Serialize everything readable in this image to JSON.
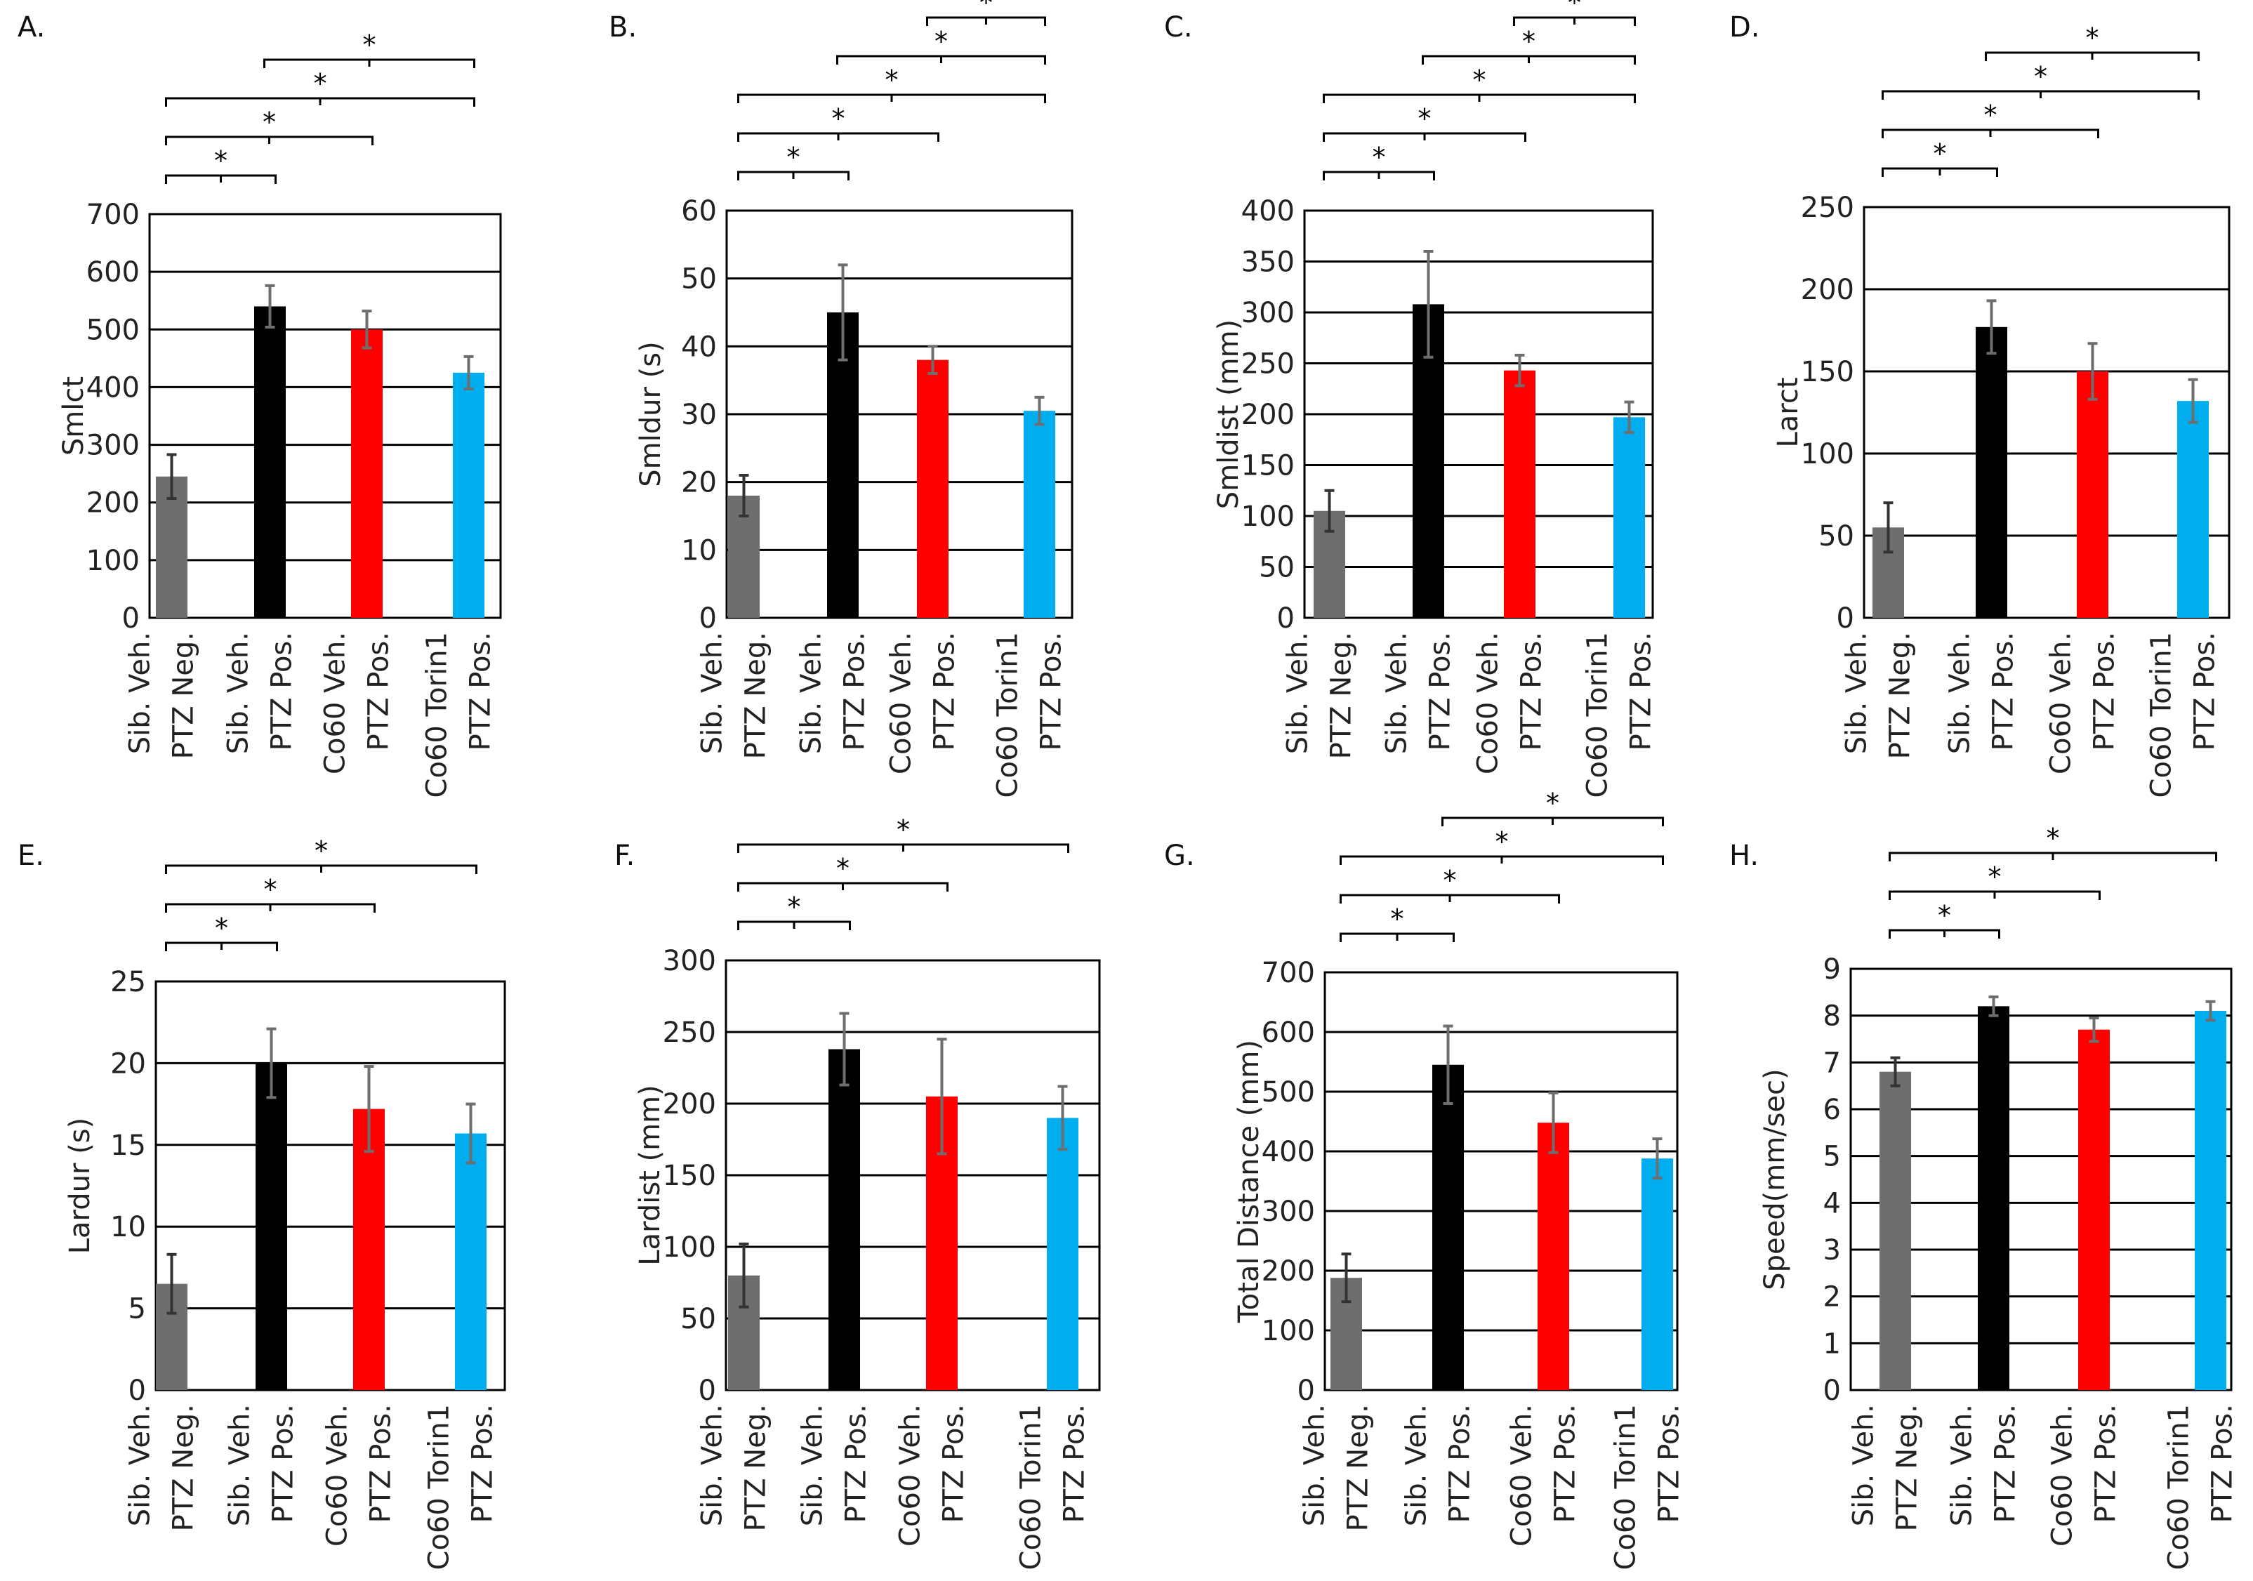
{
  "figure": {
    "description_title": ""
  },
  "colors": {
    "sib_neg": "#6e6e6e",
    "sib_pos": "#000000",
    "co60_veh": "#ff0000",
    "co60_torin": "#00adef"
  },
  "chart_data": [
    {
      "panel": "A.",
      "type": "bar",
      "ylabel": "Smlct",
      "ylim": [
        0,
        700
      ],
      "yticks": [
        0,
        100,
        200,
        300,
        400,
        500,
        600,
        700
      ],
      "categories": [
        [
          "Sib. Veh.",
          "PTZ Neg."
        ],
        [
          "Sib. Veh.",
          "PTZ Pos."
        ],
        [
          "Co60 Veh.",
          "PTZ Pos."
        ],
        [
          "Co60 Torin1",
          "PTZ Pos."
        ]
      ],
      "values": [
        245,
        540,
        500,
        425
      ],
      "errors": [
        38,
        36,
        32,
        28
      ],
      "significance": [
        {
          "from": 0,
          "to": 1,
          "label": "*"
        },
        {
          "from": 0,
          "to": 2,
          "label": "*"
        },
        {
          "from": 0,
          "to": 3,
          "label": "*"
        },
        {
          "from": 1,
          "to": 3,
          "label": "*"
        }
      ]
    },
    {
      "panel": "B.",
      "type": "bar",
      "ylabel": "Smldur (s)",
      "ylim": [
        0,
        60
      ],
      "yticks": [
        0,
        10,
        20,
        30,
        40,
        50,
        60
      ],
      "categories": [
        [
          "Sib. Veh.",
          "PTZ Neg."
        ],
        [
          "Sib. Veh.",
          "PTZ Pos."
        ],
        [
          "Co60 Veh.",
          "PTZ Pos."
        ],
        [
          "Co60 Torin1",
          "PTZ Pos."
        ]
      ],
      "values": [
        18,
        45,
        38,
        30.5
      ],
      "errors": [
        3,
        7,
        2,
        2
      ],
      "significance": [
        {
          "from": 0,
          "to": 1,
          "label": "*"
        },
        {
          "from": 0,
          "to": 2,
          "label": "*"
        },
        {
          "from": 0,
          "to": 3,
          "label": "*"
        },
        {
          "from": 1,
          "to": 3,
          "label": "*"
        },
        {
          "from": 2,
          "to": 3,
          "label": "*"
        }
      ]
    },
    {
      "panel": "C.",
      "type": "bar",
      "ylabel": "Smldist (mm)",
      "ylim": [
        0,
        400
      ],
      "yticks": [
        0,
        50,
        100,
        150,
        200,
        250,
        300,
        350,
        400
      ],
      "categories": [
        [
          "Sib. Veh.",
          "PTZ Neg."
        ],
        [
          "Sib. Veh.",
          "PTZ Pos."
        ],
        [
          "Co60 Veh.",
          "PTZ Pos."
        ],
        [
          "Co60 Torin1",
          "PTZ Pos."
        ]
      ],
      "values": [
        105,
        308,
        243,
        197
      ],
      "errors": [
        20,
        52,
        15,
        15
      ],
      "significance": [
        {
          "from": 0,
          "to": 1,
          "label": "*"
        },
        {
          "from": 0,
          "to": 2,
          "label": "*"
        },
        {
          "from": 0,
          "to": 3,
          "label": "*"
        },
        {
          "from": 1,
          "to": 3,
          "label": "*"
        },
        {
          "from": 2,
          "to": 3,
          "label": "*"
        }
      ]
    },
    {
      "panel": "D.",
      "type": "bar",
      "ylabel": "Larct",
      "ylim": [
        0,
        250
      ],
      "yticks": [
        0,
        50,
        100,
        150,
        200,
        250
      ],
      "categories": [
        [
          "Sib. Veh.",
          "PTZ Neg."
        ],
        [
          "Sib. Veh.",
          "PTZ Pos."
        ],
        [
          "Co60 Veh.",
          "PTZ Pos."
        ],
        [
          "Co60 Torin1",
          "PTZ Pos."
        ]
      ],
      "values": [
        55,
        177,
        150,
        132
      ],
      "errors": [
        15,
        16,
        17,
        13
      ],
      "significance": [
        {
          "from": 0,
          "to": 1,
          "label": "*"
        },
        {
          "from": 0,
          "to": 2,
          "label": "*"
        },
        {
          "from": 0,
          "to": 3,
          "label": "*"
        },
        {
          "from": 1,
          "to": 3,
          "label": "*"
        }
      ]
    },
    {
      "panel": "E.",
      "type": "bar",
      "ylabel": "Lardur (s)",
      "ylim": [
        0,
        25
      ],
      "yticks": [
        0,
        5,
        10,
        15,
        20,
        25
      ],
      "categories": [
        [
          "Sib. Veh.",
          "PTZ Neg."
        ],
        [
          "Sib. Veh.",
          "PTZ Pos."
        ],
        [
          "Co60 Veh.",
          "PTZ Pos."
        ],
        [
          "Co60 Torin1",
          "PTZ Pos."
        ]
      ],
      "values": [
        6.5,
        20,
        17.2,
        15.7
      ],
      "errors": [
        1.8,
        2.1,
        2.6,
        1.8
      ],
      "significance": [
        {
          "from": 0,
          "to": 1,
          "label": "*"
        },
        {
          "from": 0,
          "to": 2,
          "label": "*"
        },
        {
          "from": 0,
          "to": 3,
          "label": "*"
        }
      ]
    },
    {
      "panel": "F.",
      "type": "bar",
      "ylabel": "Lardist (mm)",
      "ylim": [
        0,
        300
      ],
      "yticks": [
        0,
        50,
        100,
        150,
        200,
        250,
        300
      ],
      "categories": [
        [
          "Sib. Veh.",
          "PTZ Neg."
        ],
        [
          "Sib. Veh.",
          "PTZ Pos."
        ],
        [
          "Co60 Veh.",
          "PTZ Pos."
        ],
        [
          "Co60 Torin1",
          "PTZ Pos."
        ]
      ],
      "values": [
        80,
        238,
        205,
        190
      ],
      "errors": [
        22,
        25,
        40,
        22
      ],
      "significance": [
        {
          "from": 0,
          "to": 1,
          "label": "*"
        },
        {
          "from": 0,
          "to": 2,
          "label": "*"
        },
        {
          "from": 0,
          "to": 3,
          "label": "*"
        }
      ]
    },
    {
      "panel": "G.",
      "type": "bar",
      "ylabel": "Total Distance (mm)",
      "ylim": [
        0,
        700
      ],
      "yticks": [
        0,
        100,
        200,
        300,
        400,
        500,
        600,
        700
      ],
      "categories": [
        [
          "Sib. Veh.",
          "PTZ Neg."
        ],
        [
          "Sib. Veh.",
          "PTZ Pos."
        ],
        [
          "Co60 Veh.",
          "PTZ Pos."
        ],
        [
          "Co60 Torin1",
          "PTZ Pos."
        ]
      ],
      "values": [
        188,
        545,
        448,
        388
      ],
      "errors": [
        40,
        65,
        50,
        33
      ],
      "significance": [
        {
          "from": 0,
          "to": 1,
          "label": "*"
        },
        {
          "from": 0,
          "to": 2,
          "label": "*"
        },
        {
          "from": 0,
          "to": 3,
          "label": "*"
        },
        {
          "from": 1,
          "to": 3,
          "label": "*"
        }
      ]
    },
    {
      "panel": "H.",
      "type": "bar",
      "ylabel": "Speed(mm/sec)",
      "ylim": [
        0,
        9
      ],
      "yticks": [
        0,
        1,
        2,
        3,
        4,
        5,
        6,
        7,
        8,
        9
      ],
      "categories": [
        [
          "Sib. Veh.",
          "PTZ Neg."
        ],
        [
          "Sib. Veh.",
          "PTZ Pos."
        ],
        [
          "Co60 Veh.",
          "PTZ Pos."
        ],
        [
          "Co60 Torin1",
          "PTZ Pos."
        ]
      ],
      "values": [
        6.8,
        8.2,
        7.7,
        8.1
      ],
      "errors": [
        0.3,
        0.2,
        0.25,
        0.2
      ],
      "significance": [
        {
          "from": 0,
          "to": 1,
          "label": "*"
        },
        {
          "from": 0,
          "to": 2,
          "label": "*"
        },
        {
          "from": 0,
          "to": 3,
          "label": "*"
        }
      ]
    }
  ]
}
